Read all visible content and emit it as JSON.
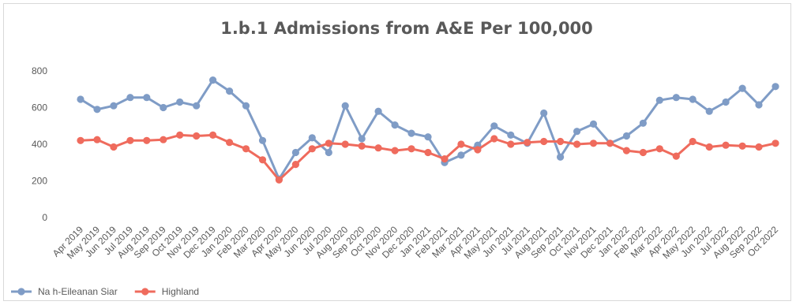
{
  "chart_data": {
    "type": "line",
    "title": "1.b.1 Admissions from A&E Per 100,000",
    "xlabel": "",
    "ylabel": "",
    "ylim": [
      0,
      800
    ],
    "yticks": [
      0,
      200,
      400,
      600,
      800
    ],
    "grid": false,
    "legend_position": "bottom-left",
    "categories": [
      "Apr 2019",
      "May 2019",
      "Jun 2019",
      "Jul 2019",
      "Aug 2019",
      "Sep 2019",
      "Oct 2019",
      "Nov 2019",
      "Dec 2019",
      "Jan 2020",
      "Feb 2020",
      "Mar 2020",
      "Apr 2020",
      "May 2020",
      "Jun 2020",
      "Jul 2020",
      "Aug 2020",
      "Sep 2020",
      "Oct 2020",
      "Nov 2020",
      "Dec 2020",
      "Jan 2021",
      "Feb 2021",
      "Mar 2021",
      "Apr 2021",
      "May 2021",
      "Jun 2021",
      "Jul 2021",
      "Aug 2021",
      "Sep 2021",
      "Oct 2021",
      "Nov 2021",
      "Dec 2021",
      "Jan 2022",
      "Feb 2022",
      "Mar 2022",
      "Apr 2022",
      "May 2022",
      "Jun 2022",
      "Jul 2022",
      "Aug 2022",
      "Sep 2022",
      "Oct 2022"
    ],
    "x_tick_labels": [
      "Apr 2019",
      "May 2019",
      "Jun 2019",
      "Jul 2019",
      "Aug 2019",
      "Sep 2019",
      "Oct 2019",
      "Nov 2019",
      "Dec 2019",
      "Jan 2020",
      "Feb 2020",
      "Mar 2020",
      "Apr 2020",
      "May 2020",
      "Jun 2020",
      "Jul 2020",
      "Aug 2020",
      "Sep 2020",
      "Oct 2020",
      "Nov 2020",
      "Dec 2020",
      "Jan 2021",
      "Feb 2021",
      "Mar 2021",
      "Apr 2021",
      "May 2021",
      "Jun 2021",
      "Jul 2021",
      "Aug 2021",
      "Sep 2021",
      "Oct 2021",
      "Nov 2021",
      "Dec 2021",
      "Jan 2022",
      "Feb 2022",
      "Mar 2022",
      "Apr 2022",
      "May 2022",
      "Jun 2022",
      "Jul 2022",
      "Aug 2022",
      "Sep 2022",
      "Oct 2022"
    ],
    "series": [
      {
        "name": "Na h-Eileanan Siar",
        "color": "#7f9cc6",
        "values": [
          645,
          590,
          610,
          655,
          655,
          600,
          630,
          610,
          750,
          690,
          610,
          420,
          210,
          355,
          435,
          355,
          610,
          430,
          580,
          505,
          460,
          440,
          300,
          340,
          395,
          500,
          450,
          405,
          570,
          330,
          470,
          510,
          405,
          445,
          515,
          640,
          655,
          645,
          580,
          630,
          705,
          615,
          715
        ]
      },
      {
        "name": "Highland",
        "color": "#ef6b5d",
        "values": [
          420,
          425,
          385,
          420,
          420,
          425,
          450,
          445,
          450,
          410,
          375,
          315,
          205,
          290,
          375,
          405,
          400,
          390,
          380,
          365,
          375,
          355,
          320,
          400,
          370,
          430,
          400,
          410,
          415,
          415,
          400,
          405,
          405,
          365,
          355,
          375,
          335,
          415,
          385,
          395,
          390,
          385,
          405
        ]
      }
    ]
  }
}
